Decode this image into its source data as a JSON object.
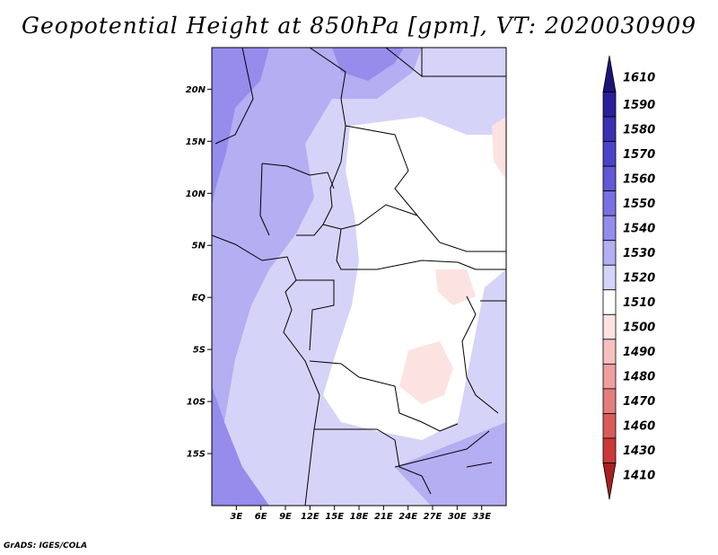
{
  "title": "Geopotential Height at 850hPa [gpm], VT: 2020030909",
  "footer": "GrADS: IGES/COLA",
  "map": {
    "lat_labels": [
      {
        "label": "20N",
        "lat": 20
      },
      {
        "label": "15N",
        "lat": 15
      },
      {
        "label": "10N",
        "lat": 10
      },
      {
        "label": "5N",
        "lat": 5
      },
      {
        "label": "EQ",
        "lat": 0
      },
      {
        "label": "5S",
        "lat": -5
      },
      {
        "label": "10S",
        "lat": -10
      },
      {
        "label": "15S",
        "lat": -15
      }
    ],
    "lon_labels": [
      {
        "label": "3E",
        "lon": 3
      },
      {
        "label": "6E",
        "lon": 6
      },
      {
        "label": "9E",
        "lon": 9
      },
      {
        "label": "12E",
        "lon": 12
      },
      {
        "label": "15E",
        "lon": 15
      },
      {
        "label": "18E",
        "lon": 18
      },
      {
        "label": "21E",
        "lon": 21
      },
      {
        "label": "24E",
        "lon": 24
      },
      {
        "label": "27E",
        "lon": 27
      },
      {
        "label": "30E",
        "lon": 30
      },
      {
        "label": "33E",
        "lon": 33
      }
    ]
  },
  "colorbar": {
    "levels": [
      {
        "label": "1610",
        "color": "#1e1478"
      },
      {
        "label": "1590",
        "color": "#2a1f9a"
      },
      {
        "label": "1580",
        "color": "#3a30b4"
      },
      {
        "label": "1570",
        "color": "#4c44c8"
      },
      {
        "label": "1560",
        "color": "#6258d6"
      },
      {
        "label": "1550",
        "color": "#7a70e2"
      },
      {
        "label": "1540",
        "color": "#958cec"
      },
      {
        "label": "1530",
        "color": "#b4aef2"
      },
      {
        "label": "1520",
        "color": "#d6d3f8"
      },
      {
        "label": "1510",
        "color": "#ffffff"
      },
      {
        "label": "1500",
        "color": "#fde2e2"
      },
      {
        "label": "1490",
        "color": "#f6c0c0"
      },
      {
        "label": "1480",
        "color": "#ee9e9e"
      },
      {
        "label": "1470",
        "color": "#e47c7c"
      },
      {
        "label": "1460",
        "color": "#da5a5a"
      },
      {
        "label": "1430",
        "color": "#cc3838"
      },
      {
        "label": "1410",
        "color": "#a82020"
      }
    ]
  }
}
